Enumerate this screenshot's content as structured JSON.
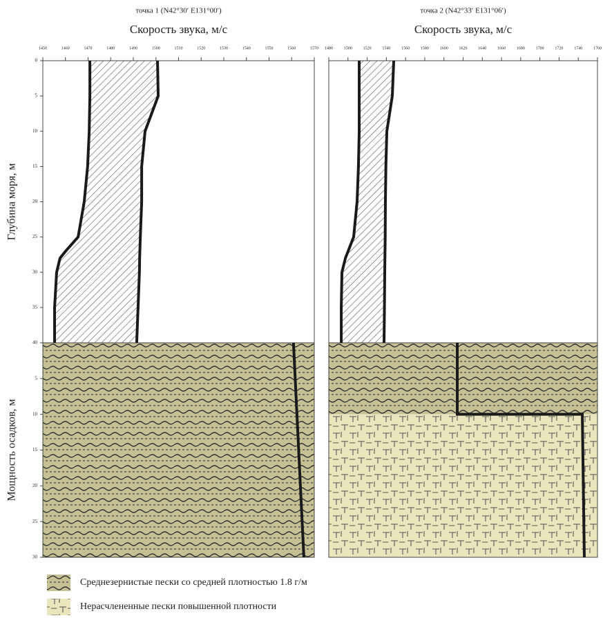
{
  "chart_data": [
    {
      "type": "line",
      "title": "точка 1 (N42°30′ E131°00′)",
      "xlabel": "Скорость звука, м/с",
      "ylabel": "Глубина моря, м",
      "sediment_ylabel": "Мощность осадков, м",
      "xlim": [
        1450,
        1570
      ],
      "xticks": [
        1450,
        1460,
        1470,
        1480,
        1490,
        1500,
        1510,
        1520,
        1530,
        1540,
        1550,
        1560,
        1570
      ],
      "ylim": [
        0,
        40
      ],
      "yticks": [
        0,
        5,
        10,
        15,
        20,
        25,
        30,
        35,
        40
      ],
      "sediment_ylim": [
        0,
        30
      ],
      "sediment_yticks": [
        5,
        10,
        15,
        20,
        25,
        30
      ],
      "line_color": "#1a1a1a",
      "water": {
        "depth": [
          0,
          5,
          10,
          15,
          20,
          25,
          27,
          28,
          30,
          35,
          40
        ],
        "min": [
          1470.8,
          1470.8,
          1470.5,
          1469.8,
          1468.3,
          1465.6,
          1460.1,
          1457.6,
          1456.1,
          1455.2,
          1455.2
        ],
        "max": [
          1500.7,
          1501.0,
          1495.2,
          1493.7,
          1493.7,
          1493.1,
          1492.9,
          1492.8,
          1492.7,
          1492.1,
          1491.5
        ]
      },
      "sediment": {
        "depth": [
          0,
          30
        ],
        "values": [
          1560.8,
          1565.4
        ]
      },
      "layers": [
        {
          "pattern": 0,
          "top": 0,
          "bottom": 30
        }
      ]
    },
    {
      "type": "line",
      "title": "точка 2 (N42°33′ E131°06′)",
      "xlabel": "Скорость звука, м/с",
      "xlim": [
        1480,
        1760
      ],
      "xticks": [
        1480,
        1500,
        1520,
        1540,
        1560,
        1580,
        1600,
        1620,
        1640,
        1660,
        1680,
        1700,
        1720,
        1740,
        1760
      ],
      "ylim": [
        0,
        40
      ],
      "sediment_ylim": [
        0,
        30
      ],
      "line_color": "#1a1a1a",
      "water": {
        "depth": [
          0,
          5,
          10,
          15,
          20,
          25,
          28,
          30,
          35,
          40
        ],
        "min": [
          1511.7,
          1511.7,
          1511.7,
          1510.9,
          1509.5,
          1505.9,
          1497.3,
          1493.7,
          1493.0,
          1493.0
        ],
        "max": [
          1547.7,
          1546.2,
          1540.5,
          1539.5,
          1539.0,
          1538.8,
          1538.5,
          1538.3,
          1538.0,
          1537.6
        ]
      },
      "sediment": {
        "depth": [
          0,
          10,
          10,
          30
        ],
        "values": [
          1613.9,
          1613.9,
          1744.2,
          1746.3
        ]
      },
      "layers": [
        {
          "pattern": 0,
          "top": 0,
          "bottom": 10
        },
        {
          "pattern": 1,
          "top": 10,
          "bottom": 30
        }
      ]
    }
  ],
  "legend": {
    "items": [
      {
        "label": "Среднезернистые пески со средней плотностью 1.8 г/м",
        "color": "#c6c095"
      },
      {
        "label": "Нерасчлененные пески повышенной плотности",
        "color": "#e9e5bc"
      }
    ]
  }
}
